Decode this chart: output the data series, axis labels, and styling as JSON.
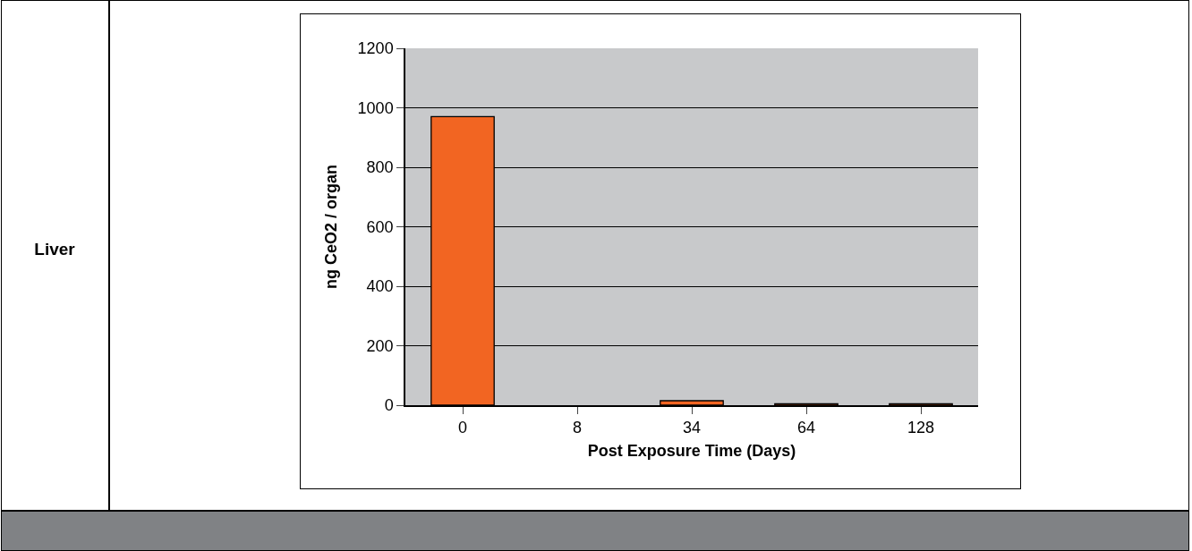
{
  "chart_data": {
    "type": "bar",
    "xlabel": "Post Exposure Time (Days)",
    "ylabel": "ng CeO2 / organ",
    "categories": [
      "0",
      "8",
      "34",
      "64",
      "128"
    ],
    "values": [
      970,
      null,
      15,
      5,
      5
    ],
    "color": "#f26522",
    "ylim": [
      0,
      1200
    ],
    "yticks": [
      0,
      200,
      400,
      600,
      800,
      1000,
      1200
    ],
    "grid": "y",
    "annotations": [
      "Liver"
    ]
  }
}
